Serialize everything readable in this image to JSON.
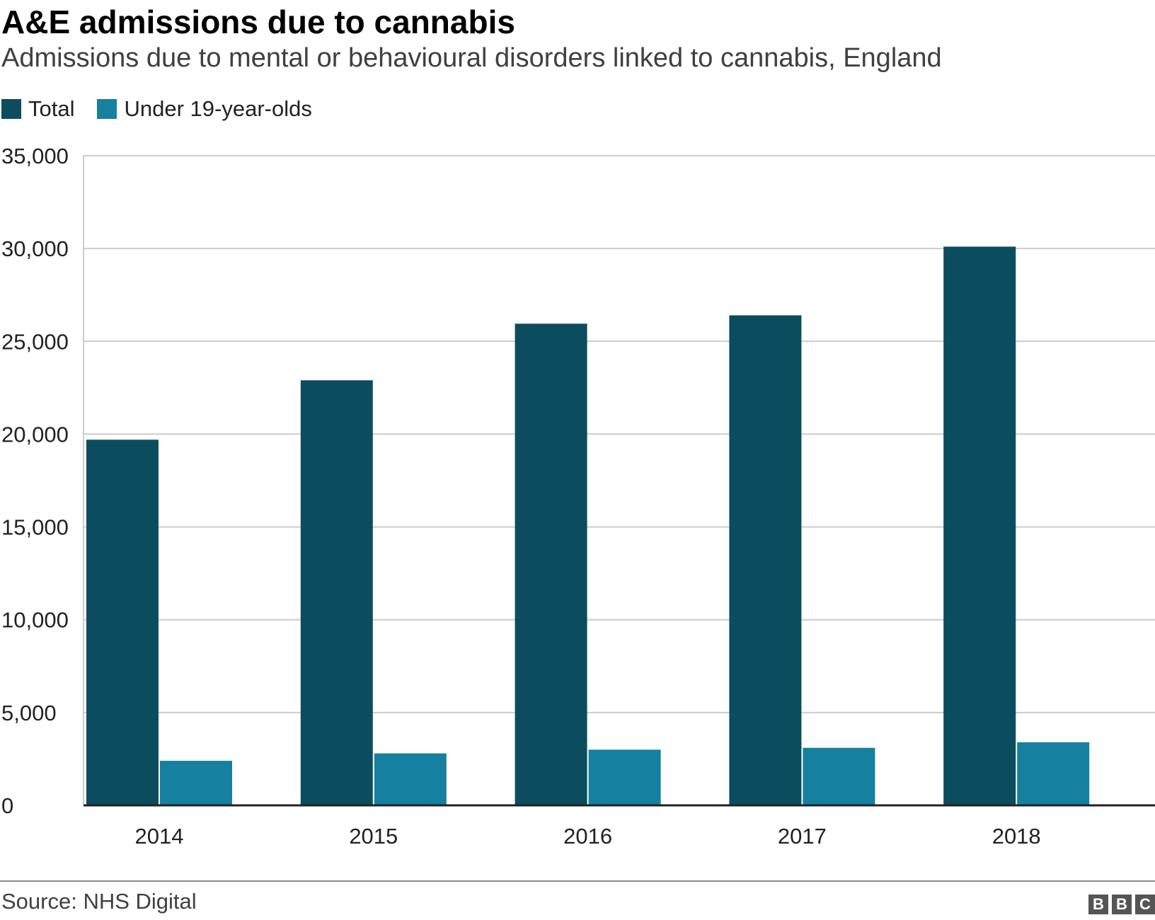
{
  "header": {
    "title": "A&E admissions due to cannabis",
    "subtitle": "Admissions due to mental or behavioural disorders linked to cannabis, England"
  },
  "legend": {
    "position": "top-left",
    "items": [
      {
        "label": "Total",
        "color": "#0b4d5f"
      },
      {
        "label": "Under 19-year-olds",
        "color": "#1580a0"
      }
    ]
  },
  "footer": {
    "source": "Source: NHS Digital",
    "logo_letters": [
      "B",
      "B",
      "C"
    ]
  },
  "chart_data": {
    "type": "bar",
    "title": "A&E admissions due to cannabis",
    "subtitle": "Admissions due to mental or behavioural disorders linked to cannabis, England",
    "xlabel": "",
    "ylabel": "",
    "categories": [
      "2014",
      "2015",
      "2016",
      "2017",
      "2018"
    ],
    "series": [
      {
        "name": "Total",
        "color": "#0b4d5f",
        "values": [
          19700,
          22900,
          25950,
          26400,
          30100
        ]
      },
      {
        "name": "Under 19-year-olds",
        "color": "#1580a0",
        "values": [
          2400,
          2800,
          3000,
          3100,
          3400
        ]
      }
    ],
    "ylim": [
      0,
      35000
    ],
    "yticks": [
      0,
      5000,
      10000,
      15000,
      20000,
      25000,
      30000,
      35000
    ],
    "ytick_labels": [
      "0",
      "5,000",
      "10,000",
      "15,000",
      "20,000",
      "25,000",
      "30,000",
      "35,000"
    ],
    "grid": true,
    "legend_position": "top-left"
  }
}
